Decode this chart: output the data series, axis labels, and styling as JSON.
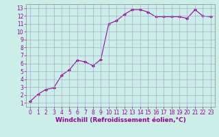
{
  "x": [
    0,
    1,
    2,
    3,
    4,
    5,
    6,
    7,
    8,
    9,
    10,
    11,
    12,
    13,
    14,
    15,
    16,
    17,
    18,
    19,
    20,
    21,
    22,
    23
  ],
  "y": [
    1.2,
    2.1,
    2.7,
    2.9,
    4.5,
    5.2,
    6.4,
    6.2,
    5.7,
    6.5,
    11.0,
    11.4,
    12.2,
    12.8,
    12.8,
    12.5,
    11.9,
    11.9,
    11.9,
    11.9,
    11.7,
    12.8,
    12.0,
    11.9
  ],
  "line_color": "#990099",
  "marker": "D",
  "markersize": 2.0,
  "bg_color": "#cceee8",
  "grid_color": "#aaaacc",
  "xlabel": "Windchill (Refroidissement éolien,°C)",
  "xlim": [
    -0.5,
    23.5
  ],
  "ylim": [
    0.5,
    13.5
  ],
  "xticks": [
    0,
    1,
    2,
    3,
    4,
    5,
    6,
    7,
    8,
    9,
    10,
    11,
    12,
    13,
    14,
    15,
    16,
    17,
    18,
    19,
    20,
    21,
    22,
    23
  ],
  "yticks": [
    1,
    2,
    3,
    4,
    5,
    6,
    7,
    8,
    9,
    10,
    11,
    12,
    13
  ],
  "tick_fontsize": 5.5,
  "xlabel_fontsize": 6.5,
  "label_color": "#990099",
  "spine_color": "#888888",
  "linewidth": 0.8
}
